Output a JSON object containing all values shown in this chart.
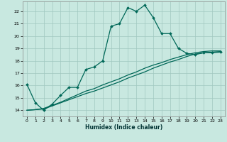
{
  "title": "",
  "xlabel": "Humidex (Indice chaleur)",
  "ylabel": "",
  "bg_color": "#c8e8e0",
  "grid_color": "#a0c8c0",
  "line_color": "#006858",
  "xlim": [
    -0.5,
    23.5
  ],
  "ylim": [
    13.5,
    22.8
  ],
  "xticks": [
    0,
    1,
    2,
    3,
    4,
    5,
    6,
    7,
    8,
    9,
    10,
    11,
    12,
    13,
    14,
    15,
    16,
    17,
    18,
    19,
    20,
    21,
    22,
    23
  ],
  "yticks": [
    14,
    15,
    16,
    17,
    18,
    19,
    20,
    21,
    22
  ],
  "line1_x": [
    0,
    1,
    2,
    3,
    4,
    5,
    6,
    7,
    8,
    9,
    10,
    11,
    12,
    13,
    14,
    15,
    16,
    17,
    18,
    19,
    20,
    21,
    22,
    23
  ],
  "line1_y": [
    16.1,
    14.6,
    14.0,
    14.5,
    15.2,
    15.85,
    15.85,
    17.3,
    17.5,
    18.0,
    20.8,
    21.0,
    22.3,
    22.0,
    22.5,
    21.5,
    20.2,
    20.2,
    19.0,
    18.6,
    18.5,
    18.65,
    18.65,
    18.7
  ],
  "line2_x": [
    0,
    1,
    2,
    3,
    4,
    5,
    6,
    7,
    8,
    9,
    10,
    11,
    12,
    13,
    14,
    15,
    16,
    17,
    18,
    19,
    20,
    21,
    22,
    23
  ],
  "line2_y": [
    14.0,
    14.05,
    14.1,
    14.35,
    14.6,
    14.85,
    15.1,
    15.35,
    15.55,
    15.8,
    16.05,
    16.3,
    16.6,
    16.85,
    17.1,
    17.4,
    17.65,
    17.9,
    18.1,
    18.35,
    18.55,
    18.65,
    18.7,
    18.75
  ],
  "line3_x": [
    0,
    1,
    2,
    3,
    4,
    5,
    6,
    7,
    8,
    9,
    10,
    11,
    12,
    13,
    14,
    15,
    16,
    17,
    18,
    19,
    20,
    21,
    22,
    23
  ],
  "line3_y": [
    14.0,
    14.05,
    14.15,
    14.4,
    14.65,
    14.95,
    15.25,
    15.55,
    15.75,
    16.05,
    16.3,
    16.55,
    16.85,
    17.1,
    17.4,
    17.65,
    17.85,
    18.1,
    18.3,
    18.5,
    18.65,
    18.75,
    18.8,
    18.8
  ]
}
